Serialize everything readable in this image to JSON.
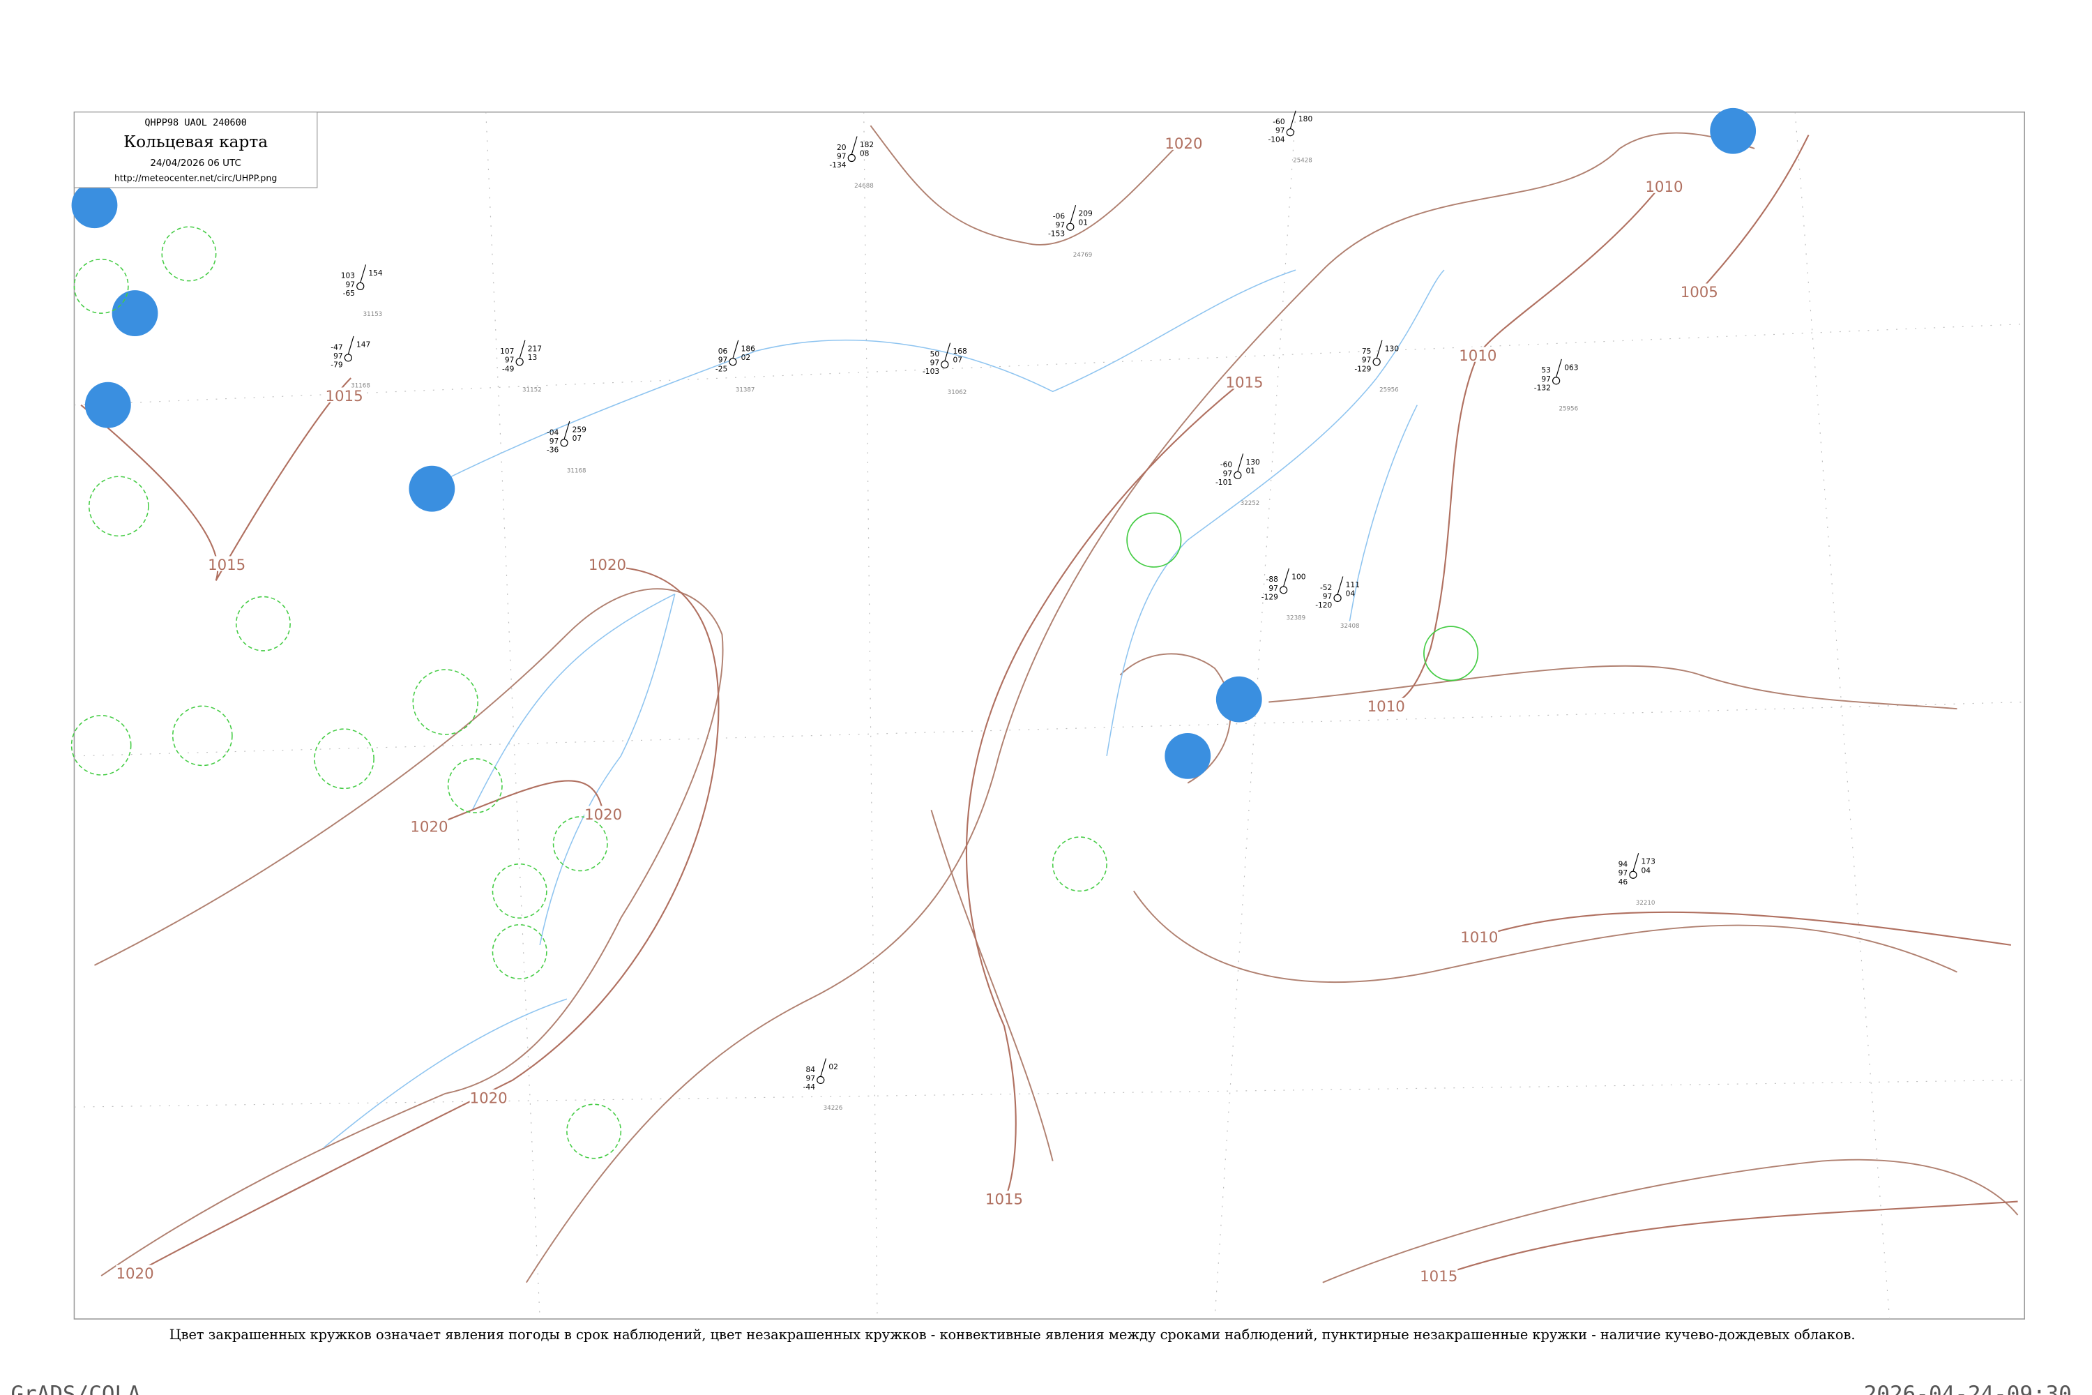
{
  "header": {
    "code": "QHPP98  UAOL  240600",
    "title": "Кольцевая карта",
    "datetime": "24/04/2026 06 UTC",
    "url": "http://meteocenter.net/circ/UHPP.png"
  },
  "isobars": [
    {
      "label": "1015"
    },
    {
      "label": "1015"
    },
    {
      "label": "1015"
    },
    {
      "label": "1015"
    },
    {
      "label": "1015"
    },
    {
      "label": "1020"
    },
    {
      "label": "1020"
    },
    {
      "label": "1020"
    },
    {
      "label": "1020"
    },
    {
      "label": "1020"
    },
    {
      "label": "1020"
    },
    {
      "label": "1010"
    },
    {
      "label": "1010"
    },
    {
      "label": "1010"
    },
    {
      "label": "1010"
    },
    {
      "label": "1005"
    }
  ],
  "stations": [
    {
      "left": [
        "103",
        "97",
        "-65"
      ],
      "right": [
        "154"
      ],
      "index": "31153"
    },
    {
      "left": [
        "-47",
        "97",
        "-79"
      ],
      "right": [
        "147"
      ],
      "index": "31168"
    },
    {
      "left": [
        "107",
        "97",
        "-49"
      ],
      "right": [
        "217",
        "13"
      ],
      "index": "31152"
    },
    {
      "left": [
        "-04",
        "97",
        "-36"
      ],
      "right": [
        "259",
        "07"
      ],
      "index": "31168"
    },
    {
      "left": [
        "06",
        "97",
        "-25"
      ],
      "right": [
        "186",
        "02"
      ],
      "index": "31387"
    },
    {
      "left": [
        "50",
        "97",
        "-103"
      ],
      "right": [
        "168",
        "07"
      ],
      "index": "31062"
    },
    {
      "left": [
        "75",
        "97",
        "-129"
      ],
      "right": [
        "130"
      ],
      "index": "25956"
    },
    {
      "left": [
        "53",
        "97",
        "-132"
      ],
      "right": [
        "063"
      ],
      "index": "25956"
    },
    {
      "left": [
        "-60",
        "97",
        "-101"
      ],
      "right": [
        "130",
        "01"
      ],
      "index": "32252"
    },
    {
      "left": [
        "-88",
        "97",
        "-129"
      ],
      "right": [
        "100"
      ],
      "index": "32389"
    },
    {
      "left": [
        "-52",
        "97",
        "-120"
      ],
      "right": [
        "111",
        "04"
      ],
      "index": "32408"
    },
    {
      "left": [
        "94",
        "97",
        "46"
      ],
      "right": [
        "173",
        "04"
      ],
      "index": "32210"
    },
    {
      "left": [
        "84",
        "97",
        "-44"
      ],
      "right": [
        "02"
      ],
      "index": "34226"
    },
    {
      "left": [
        "-60",
        "97",
        "-104"
      ],
      "right": [
        "180"
      ],
      "index": "25428"
    },
    {
      "left": [
        "20",
        "97",
        "-134"
      ],
      "right": [
        "182",
        "08"
      ],
      "index": "24688"
    },
    {
      "left": [
        "-06",
        "97",
        "-153"
      ],
      "right": [
        "209",
        "01"
      ],
      "index": "24769"
    }
  ],
  "footnote": "Цвет закрашенных кружков означает явления погоды в срок наблюдений, цвет незакрашенных кружков - конвективные явления между сроками наблюдений, пунктирные незакрашенные кружки - наличие кучево-дождевых облаков.",
  "footer": {
    "left": "GrADS/COLA",
    "right": "2026-04-24-09:30"
  }
}
